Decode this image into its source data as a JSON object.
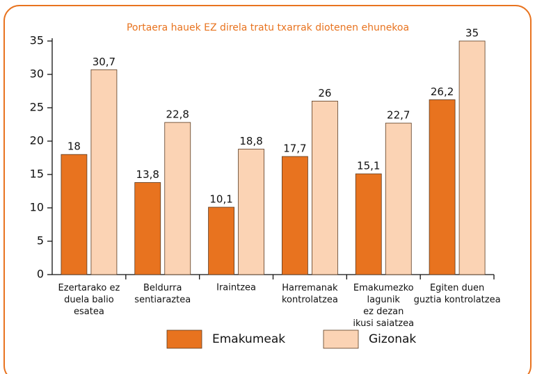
{
  "chart_data": {
    "type": "bar",
    "title": "Portaera hauek EZ direla tratu txarrak diotenen ehunekoa",
    "categories": [
      "Ezertarako ez\nduela balio\nesatea",
      "Beldurra\nsentiaraztea",
      "Iraintzea",
      "Harremanak\nkontrolatzea",
      "Emakumezko\nlagunik\nez dezan\nikusi saiatzea",
      "Egiten duen\nguztia kontrolatzea"
    ],
    "series": [
      {
        "name": "Emakumeak",
        "color": "#e8731f",
        "values": [
          18,
          13.8,
          10.1,
          17.7,
          15.1,
          26.2
        ],
        "value_labels": [
          "18",
          "13,8",
          "10,1",
          "17,7",
          "15,1",
          "26,2"
        ]
      },
      {
        "name": "Gizonak",
        "color": "#fbd3b4",
        "values": [
          30.7,
          22.8,
          18.8,
          26,
          22.7,
          35
        ],
        "value_labels": [
          "30,7",
          "22,8",
          "18,8",
          "26",
          "22,7",
          "35"
        ]
      }
    ],
    "ylim": [
      0,
      35
    ],
    "yticks": [
      0,
      5,
      10,
      15,
      20,
      25,
      30,
      35
    ],
    "legend": "bottom"
  }
}
